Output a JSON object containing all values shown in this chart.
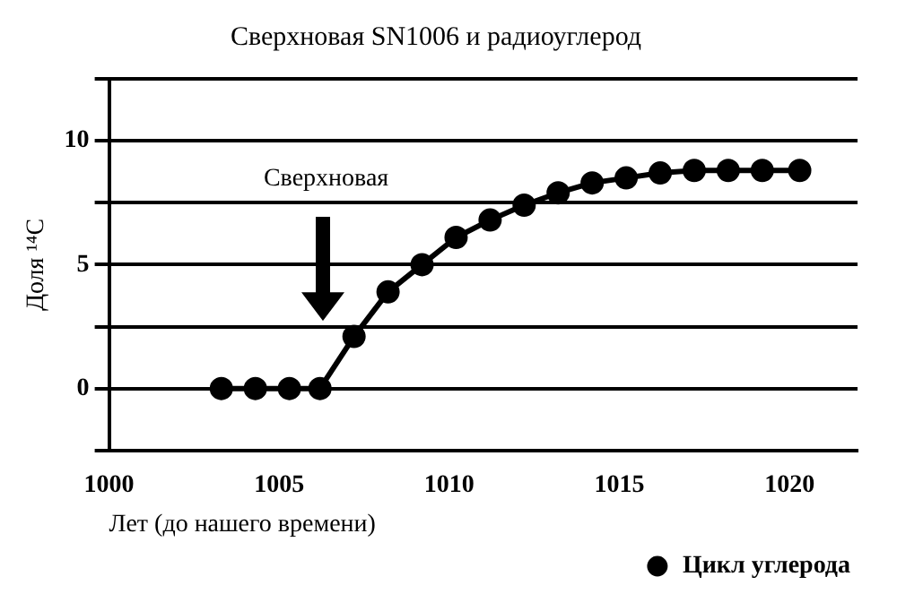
{
  "chart_data": {
    "type": "line",
    "title": "Сверхновая SN1006 и радиоуглерод",
    "xlabel": "Лет (до нашего времени)",
    "ylabel": "Доля ¹⁴C",
    "x": [
      1003.3,
      1004.3,
      1005.3,
      1006.2,
      1007.2,
      1008.2,
      1009.2,
      1010.2,
      1011.2,
      1012.2,
      1013.2,
      1014.2,
      1015.2,
      1016.2,
      1017.2,
      1018.2,
      1019.2,
      1020.3
    ],
    "series": [
      {
        "name": "Цикл углерода",
        "color": "#000000",
        "values": [
          0,
          0,
          0,
          0,
          2.1,
          3.9,
          5,
          6.1,
          6.8,
          7.4,
          7.9,
          8.3,
          8.5,
          8.7,
          8.8,
          8.8,
          8.8,
          8.8
        ]
      }
    ],
    "annotations": [
      "Сверхновая"
    ],
    "xlim": [
      1000,
      1022
    ],
    "xticks": [
      1000,
      1005,
      1010,
      1015,
      1020
    ],
    "ylim": [
      -2.5,
      12.5
    ],
    "yticks": [
      {
        "value": -2.5,
        "label": null
      },
      0,
      {
        "value": 2.5,
        "label": null
      },
      5,
      {
        "value": 7.5,
        "label": null
      },
      10,
      {
        "value": 12.5,
        "label": null
      }
    ],
    "grid": "y",
    "legend": "bottom right",
    "marker": "circle",
    "line_style": "solid"
  }
}
